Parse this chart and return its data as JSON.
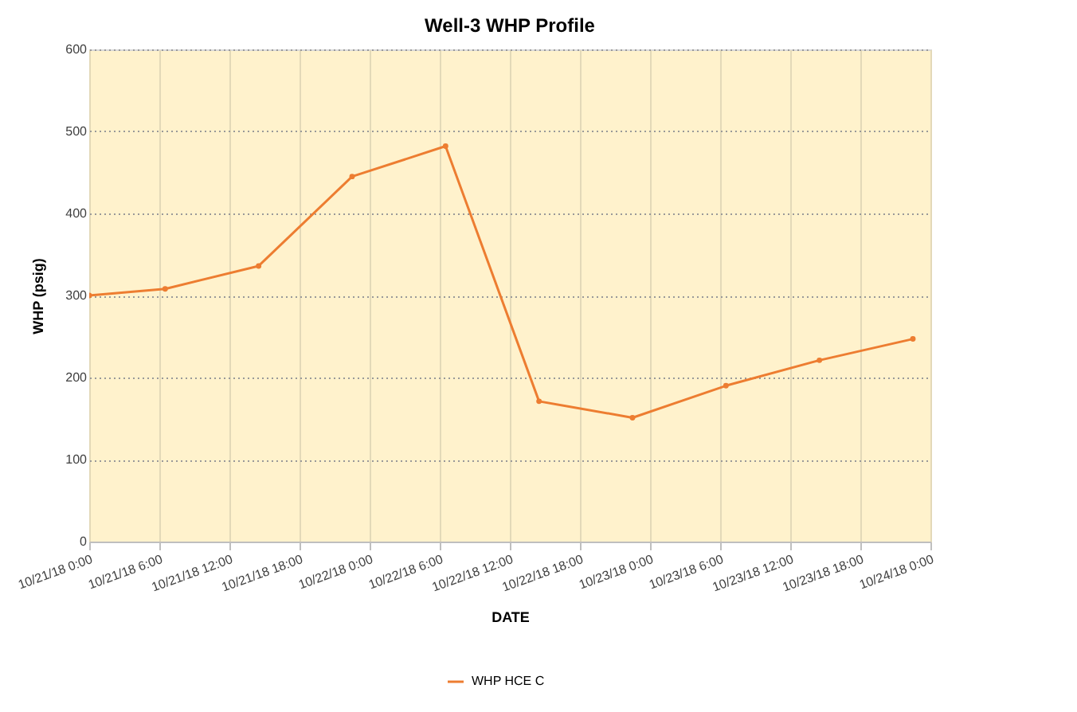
{
  "chart_data": {
    "type": "line",
    "title": "Well-3 WHP Profile",
    "xlabel": "DATE",
    "ylabel": "WHP (psig)",
    "x": [
      "--10-21T00:00",
      "--10-21T06:30",
      "--10-21T14:30",
      "--10-21T22:30",
      "--10-22T06:30",
      "--10-22T14:30",
      "--10-22T22:30",
      "--10-23T06:30",
      "--10-23T14:30",
      "--10-23T22:30"
    ],
    "series": [
      {
        "name": "WHP HCE C",
        "color": "#ed7d31",
        "values": [
          300,
          308,
          336,
          445,
          482,
          171,
          151,
          190,
          221,
          247
        ]
      }
    ],
    "xlim": [
      "--10-21T00:00",
      "--10-24T00:00"
    ],
    "xticks": [
      {
        "value": "--10-21T00:00",
        "label": "10/21/18 0:00"
      },
      {
        "value": "--10-21T06:00",
        "label": "10/21/18 6:00"
      },
      {
        "value": "--10-21T12:00",
        "label": "10/21/18 12:00"
      },
      {
        "value": "--10-21T18:00",
        "label": "10/21/18 18:00"
      },
      {
        "value": "--10-22T00:00",
        "label": "10/22/18 0:00"
      },
      {
        "value": "--10-22T06:00",
        "label": "10/22/18 6:00"
      },
      {
        "value": "--10-22T12:00",
        "label": "10/22/18 12:00"
      },
      {
        "value": "--10-22T18:00",
        "label": "10/22/18 18:00"
      },
      {
        "value": "--10-23T00:00",
        "label": "10/23/18 0:00"
      },
      {
        "value": "--10-23T06:00",
        "label": "10/23/18 6:00"
      },
      {
        "value": "--10-23T12:00",
        "label": "10/23/18 12:00"
      },
      {
        "value": "--10-23T18:00",
        "label": "10/23/18 18:00"
      },
      {
        "value": "--10-24T00:00",
        "label": "10/24/18 0:00"
      }
    ],
    "ylim": [
      0,
      600
    ],
    "yticks": [
      0,
      100,
      200,
      300,
      400,
      500,
      600
    ],
    "grid": true,
    "legend": "bottom",
    "marker": "circle",
    "line_style": "solid"
  }
}
